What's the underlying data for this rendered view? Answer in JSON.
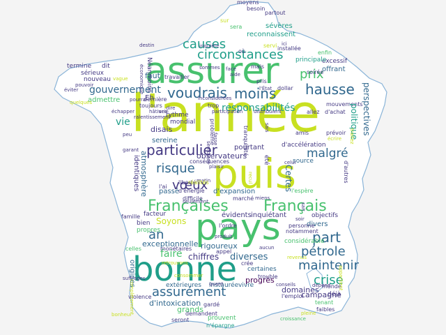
{
  "cloud": {
    "colors": {
      "background": "#f4f4f4",
      "outline": "#8ab4d8",
      "fill": "#ffffff",
      "yellow": "#c8e021",
      "green": "#48c16e",
      "teal": "#1f9e89",
      "blue": "#31688e",
      "indigo": "#443983",
      "purple": "#440154"
    },
    "words": {
      "annee": "l'année",
      "assurer": "assurer",
      "puis": "puis",
      "pays": "pays",
      "bonne": "bonne",
      "francaises": "Françaises",
      "francais": "Français",
      "voudrais": "voudrais",
      "causes": "causes",
      "moins": "moins",
      "hausse": "hausse",
      "particulier": "particulier",
      "risque": "risque",
      "crise": "crise",
      "petrole": "pétrole",
      "part": "part",
      "maintenir": "maintenir",
      "assurement": "assurément",
      "prix": "prix",
      "circonstances": "circonstances",
      "gouvernement": "gouvernement",
      "responsabilites": "responsabilités",
      "malgre": "malgré",
      "voeux": "vœux",
      "an": "an",
      "faire": "faire",
      "diverses": "diverses",
      "chiffres": "chiffres",
      "soyons": "Soyons",
      "exceptionnelle": "exceptionnelle",
      "rigoureux": "rigoureux",
      "intoxication": "d'intoxication",
      "grands": "grands",
      "campagne": "campagne",
      "domaines": "domaines",
      "progres": "progrès",
      "vie": "vie",
      "pourtant": "pourtant",
      "observateurs": "observateurs",
      "sereine": "sereine",
      "disais": "disais",
      "faut": "faut",
      "reconnaissent": "reconnaissent",
      "severes": "sévères",
      "offrant": "offrant",
      "excessif": "excessif",
      "perspectives": "perspectives",
      "politique": "politique",
      "acceleration": "d'accélération",
      "source": "source",
      "expansion": "d'expansion",
      "objectifs": "objectifs",
      "divers": "divers",
      "considerable": "considérable",
      "evidents": "évidents",
      "inquietant": "inquiétant",
      "passe": "passé",
      "facteur": "facteur",
      "bien": "bien",
      "propres": "propres",
      "origines": "origines",
      "exterieures": "extérieures",
      "instauree": "instaurée",
      "vivre": "vivre",
      "trouble": "trouble",
      "tenant": "tenant",
      "deja": "déjà",
      "certaines": "certaines",
      "certes": "Certes",
      "prouvent": "prouvent",
      "epargne": "n'épargne",
      "atmosphere": "atmosphère",
      "identiques": "identiques",
      "eh": "Eh",
      "admettre": "admettre",
      "rythme": "rythme",
      "mondial": "mondial",
      "nouveau": "nouveau",
      "serieux": "sérieux",
      "termine": "termine",
      "dit": "dit",
      "toujours": "toujours",
      "derniere": "dernière",
      "travailler": "travailler",
      "installee": "installée",
      "moyens": "moyens",
      "partout": "partout",
      "besoin": "besoin",
      "dollar": "dollar",
      "principale": "principale",
      "enfin": "enfin",
      "mouvements": "mouvements",
      "achat": "d'achat",
      "autres": "d'autres",
      "liberte": "liberté",
      "energie": "d'énergie",
      "espere": "l'espère",
      "marche": "marché",
      "difficile": "difficile",
      "ordre": "l'ordre",
      "appel": "appel",
      "personne": "personne",
      "notamment": "notamment",
      "cree": "crée",
      "celles": "celles",
      "monetaires": "monétaires",
      "famille": "famille",
      "violence": "violence",
      "gardé": "gardé",
      "demandent": "demandent",
      "seront": "seront",
      "emploi": "l'emploi",
      "monde": "monde",
      "faibles": "faibles",
      "conseils": "conseils",
      "depend": "dépend",
      "matin": "matin",
      "sommes": "sommes",
      "inquiete": "inquiète",
      "neanmoins": "Néanmoins",
      "economique": "économique",
      "inconsiderees": "inconsidérées",
      "participation": "participation",
      "aide": "aide",
      "tranquillite": "tranquillité",
      "probleme": "problème",
      "pris": "pris",
      "distribuient": "distribuient",
      "amis": "amis",
      "prevoir": "prévoir",
      "soiree": "soirée",
      "allez": "allez",
      "hatives": "hâtives",
      "dire": "dire",
      "ralentissement": "ralentissement",
      "echapper": "échapper",
      "conseguences": "conséquences",
      "plaisir": "plaisir",
      "garant": "garant",
      "peu": "peu",
      "semblent": "semblent",
      "ete": "été",
      "ai": "l'ai",
      "realites": "réalités",
      "seulement": "seulement",
      "miens": "miens",
      "soir": "soir",
      "sait": "sait",
      "celui": "celui",
      "pouvoir": "pouvoir",
      "vague": "vague",
      "eviter": "éviter",
      "pourra": "pourra",
      "fasse": "fasse",
      "destin": "destin",
      "ici": "ici",
      "sais": "sais",
      "scie": "scie",
      "face": "face",
      "produit": "produit",
      "quant": "quant",
      "recul": "recul",
      "aucun": "aucun",
      "suffrages": "suffrages",
      "completement": "complètement",
      "traitez": "traitez",
      "appartient": "appartient",
      "trop": "trop",
      "revenus": "revenus",
      "retrouvons": "retrouvons",
      "etat": "l'État",
      "sur": "sur",
      "ou": "où",
      "sera": "sera",
      "servi": "servi",
      "consommer": "consommer",
      "bonheur": "bonheur",
      "mais": "mais",
      "pleine": "pleine",
      "croissance": "croissance",
      "ecrire": "écrire",
      "quelques": "quelques"
    }
  }
}
